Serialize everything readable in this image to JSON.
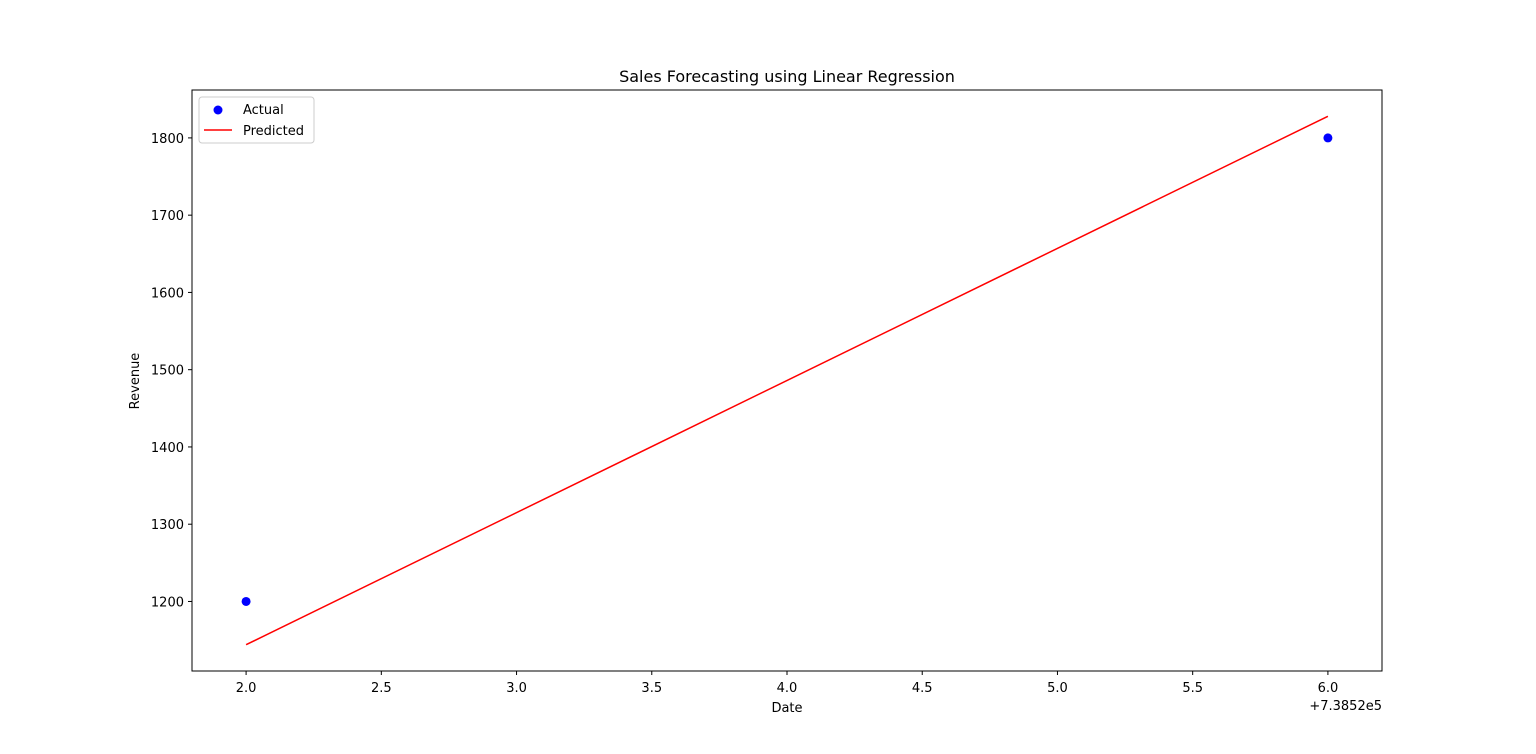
{
  "chart_data": {
    "type": "scatter",
    "title": "Sales Forecasting using Linear Regression",
    "xlabel": "Date",
    "ylabel": "Revenue",
    "x_offset_label": "+7.3852e5",
    "xlim": [
      1.8,
      6.2
    ],
    "ylim": [
      1110,
      1862
    ],
    "xticks": [
      2.0,
      2.5,
      3.0,
      3.5,
      4.0,
      4.5,
      5.0,
      5.5,
      6.0
    ],
    "xtick_labels": [
      "2.0",
      "2.5",
      "3.0",
      "3.5",
      "4.0",
      "4.5",
      "5.0",
      "5.5",
      "6.0"
    ],
    "yticks": [
      1200,
      1300,
      1400,
      1500,
      1600,
      1700,
      1800
    ],
    "ytick_labels": [
      "1200",
      "1300",
      "1400",
      "1500",
      "1600",
      "1700",
      "1800"
    ],
    "grid": false,
    "legend_position": "top-left",
    "series": [
      {
        "name": "Actual",
        "kind": "scatter",
        "color": "#0000ff",
        "x": [
          2.0,
          6.0
        ],
        "y": [
          1200,
          1800
        ]
      },
      {
        "name": "Predicted",
        "kind": "line",
        "color": "#ff0000",
        "x": [
          2.0,
          6.0
        ],
        "y": [
          1144,
          1828
        ]
      }
    ]
  }
}
